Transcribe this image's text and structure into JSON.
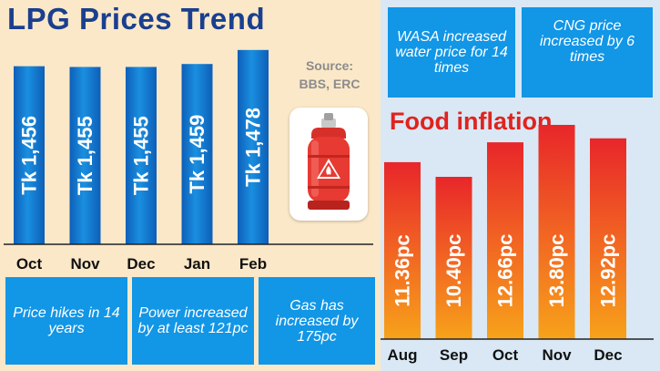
{
  "lpg": {
    "title": "LPG Prices Trend",
    "source_label": "Source:",
    "source_value": "BBS, ERC",
    "notes": [
      "Price hikes in 14 years",
      "Power increased by at least 121pc",
      "Gas has increased by 175pc"
    ]
  },
  "right_panel": {
    "notes": [
      "WASA increased water price for 14 times",
      "CNG price increased by 6 times"
    ],
    "food_title": "Food inflation"
  },
  "colors": {
    "lpg_bar": "#1585d8",
    "food_bar_top": "#e8262a",
    "food_bar_bottom": "#f7a21a",
    "note_bg": "#1296e6",
    "title_blue": "#1a3f8f",
    "food_red": "#e0231f"
  },
  "icons": [
    "gas-cylinder-icon",
    "fire-hazard-icon"
  ],
  "chart_data": [
    {
      "type": "bar",
      "title": "LPG Prices Trend",
      "categories": [
        "Oct",
        "Nov",
        "Dec",
        "Jan",
        "Feb"
      ],
      "values": [
        1456,
        1455,
        1455,
        1459,
        1478
      ],
      "value_labels": [
        "Tk 1,456",
        "Tk 1,455",
        "Tk 1,455",
        "Tk 1,459",
        "Tk 1,478"
      ],
      "xlabel": "",
      "ylabel": ""
    },
    {
      "type": "bar",
      "title": "Food inflation",
      "categories": [
        "Aug",
        "Sep",
        "Oct",
        "Nov",
        "Dec"
      ],
      "values": [
        11.36,
        10.4,
        12.66,
        13.8,
        12.92
      ],
      "value_labels": [
        "11.36pc",
        "10.40pc",
        "12.66pc",
        "13.80pc",
        "12.92pc"
      ],
      "xlabel": "",
      "ylabel": ""
    }
  ]
}
